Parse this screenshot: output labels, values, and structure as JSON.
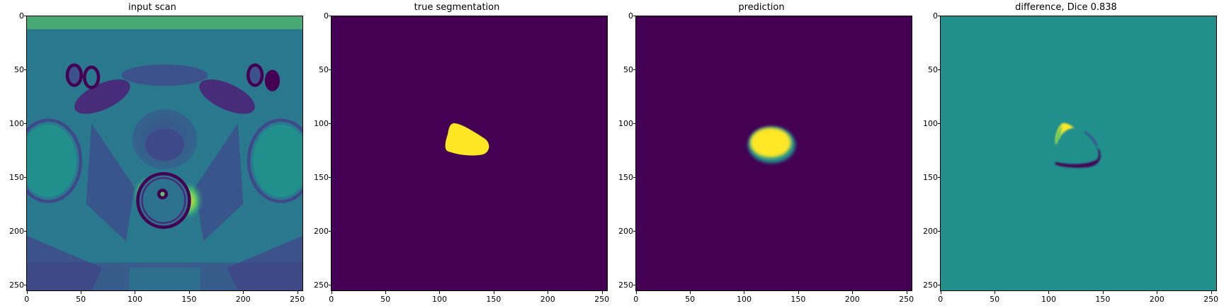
{
  "panels": [
    {
      "title": "input scan",
      "kind": "scan"
    },
    {
      "title": "true segmentation",
      "kind": "mask_true"
    },
    {
      "title": "prediction",
      "kind": "mask_pred"
    },
    {
      "title": "difference, Dice 0.838",
      "kind": "diff"
    }
  ],
  "axis_ticks": [
    "0",
    "50",
    "100",
    "150",
    "200",
    "250"
  ],
  "axis_tick_values": [
    0,
    50,
    100,
    150,
    200,
    250
  ],
  "image_extent": 256,
  "colors": {
    "viridis_low": "#440154",
    "viridis_mid": "#21908d",
    "viridis_high": "#fde725",
    "viridis_green": "#5ec962",
    "viridis_blue": "#3b528b"
  }
}
